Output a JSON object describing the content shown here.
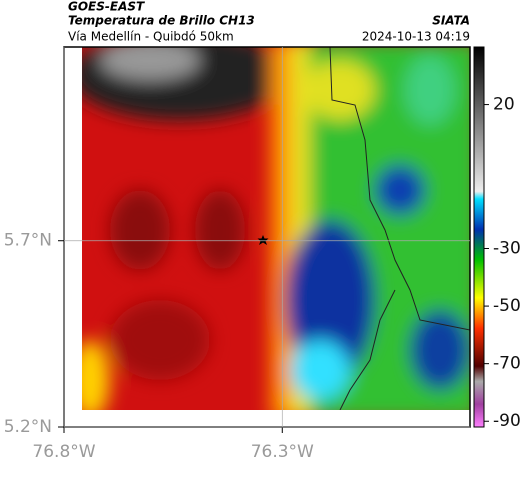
{
  "header": {
    "title": "GOES-EAST",
    "subtitle": "Temperatura de Brillo CH13",
    "location": "Vía Medellín - Quibdó 50km",
    "source": "SIATA",
    "datetime": "2024-10-13 04:19"
  },
  "map": {
    "xlim": [
      -76.8,
      -75.87
    ],
    "ylim": [
      5.2,
      6.22
    ],
    "xticks": [
      {
        "value": -76.8,
        "label": "76.8°W"
      },
      {
        "value": -76.3,
        "label": "76.3°W"
      }
    ],
    "yticks": [
      {
        "value": 5.2,
        "label": "5.2°N"
      },
      {
        "value": 5.7,
        "label": "5.7°N"
      }
    ]
  },
  "colorbar": {
    "lim": [
      -92,
      40
    ],
    "ticks": [
      20,
      -30,
      -50,
      -70,
      -90
    ]
  }
}
